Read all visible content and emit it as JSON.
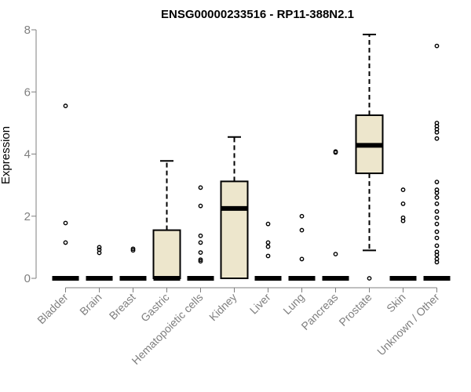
{
  "chart_data": {
    "type": "box",
    "title": "ENSG00000233516 - RP11-388N2.1",
    "xlabel": "",
    "ylabel": "Expression",
    "ylim": [
      0,
      8
    ],
    "yticks": [
      "0",
      "2",
      "4",
      "6",
      "8"
    ],
    "grid": false,
    "colors": {
      "box_fill": "#ede6cc",
      "axis": "#7f7f7f",
      "text": "#7f7f7f"
    },
    "categories": [
      "Bladder",
      "Brain",
      "Breast",
      "Gastric",
      "Hematopoietic cells",
      "Kidney",
      "Liver",
      "Lung",
      "Pancreas",
      "Prostate",
      "Skin",
      "Unknown / Other"
    ],
    "boxes": [
      {
        "q1": 0,
        "median": 0,
        "q3": 0,
        "whisker_low": 0,
        "whisker_high": 0,
        "outliers": [
          5.55,
          1.78,
          1.15
        ]
      },
      {
        "q1": 0,
        "median": 0,
        "q3": 0,
        "whisker_low": 0,
        "whisker_high": 0,
        "outliers": [
          1.0,
          0.92,
          0.82
        ]
      },
      {
        "q1": 0,
        "median": 0,
        "q3": 0,
        "whisker_low": 0,
        "whisker_high": 0,
        "outliers": [
          0.95,
          0.9
        ]
      },
      {
        "q1": 0,
        "median": 0,
        "q3": 1.55,
        "whisker_low": 0,
        "whisker_high": 3.78,
        "outliers": []
      },
      {
        "q1": 0,
        "median": 0,
        "q3": 0,
        "whisker_low": 0,
        "whisker_high": 0,
        "outliers": [
          2.92,
          2.33,
          1.37,
          1.15,
          0.83,
          0.6,
          0.55
        ]
      },
      {
        "q1": 0,
        "median": 2.25,
        "q3": 3.12,
        "whisker_low": 0,
        "whisker_high": 4.55,
        "outliers": []
      },
      {
        "q1": 0,
        "median": 0,
        "q3": 0,
        "whisker_low": 0,
        "whisker_high": 0,
        "outliers": [
          1.75,
          1.15,
          1.02,
          0.72
        ]
      },
      {
        "q1": 0,
        "median": 0,
        "q3": 0,
        "whisker_low": 0,
        "whisker_high": 0,
        "outliers": [
          2.0,
          1.55,
          0.62
        ]
      },
      {
        "q1": 0,
        "median": 0,
        "q3": 0,
        "whisker_low": 0,
        "whisker_high": 0,
        "outliers": [
          4.08,
          4.05,
          0.78
        ]
      },
      {
        "q1": 3.38,
        "median": 4.28,
        "q3": 5.25,
        "whisker_low": 0.9,
        "whisker_high": 7.85,
        "outliers": [
          0
        ]
      },
      {
        "q1": 0,
        "median": 0,
        "q3": 0,
        "whisker_low": 0,
        "whisker_high": 0,
        "outliers": [
          2.85,
          2.4,
          1.95,
          1.85
        ]
      },
      {
        "q1": 0,
        "median": 0,
        "q3": 0,
        "whisker_low": 0,
        "whisker_high": 0,
        "outliers": [
          7.48,
          5.0,
          4.9,
          4.8,
          4.7,
          4.5,
          3.1,
          2.85,
          2.75,
          2.6,
          2.4,
          2.15,
          1.95,
          1.75,
          1.5,
          1.3,
          1.05,
          0.85,
          0.75,
          0.62,
          0.52
        ]
      }
    ]
  }
}
